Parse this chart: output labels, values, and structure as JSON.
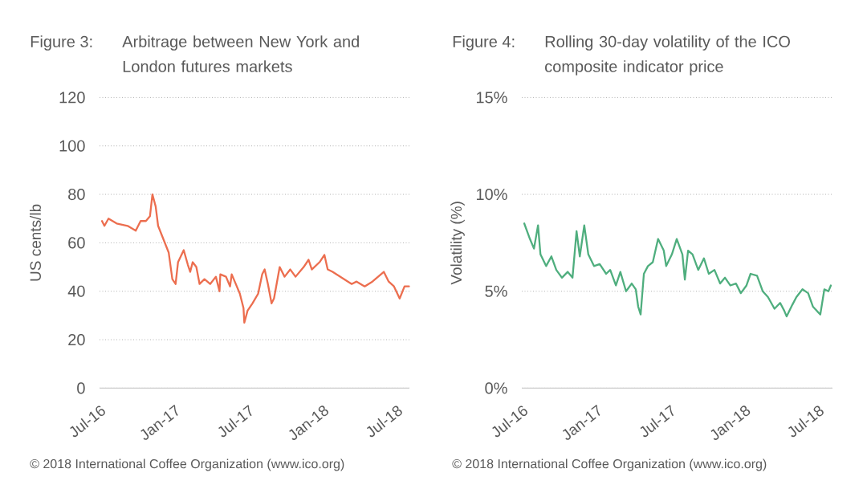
{
  "chart_data": [
    {
      "type": "line",
      "title": "Figure 3:",
      "subtitle": "Arbitrage between New York and London futures markets",
      "ylabel": "US cents/lb",
      "x": [
        "2016-07-07",
        "2016-07-13",
        "2016-07-23",
        "2016-08-12",
        "2016-09-08",
        "2016-09-28",
        "2016-10-10",
        "2016-10-23",
        "2016-11-02",
        "2016-11-08",
        "2016-11-16",
        "2016-11-22",
        "2016-12-18",
        "2016-12-27",
        "2017-01-04",
        "2017-01-10",
        "2017-01-24",
        "2017-02-03",
        "2017-02-09",
        "2017-02-15",
        "2017-02-24",
        "2017-03-04",
        "2017-03-16",
        "2017-03-30",
        "2017-04-13",
        "2017-04-22",
        "2017-04-24",
        "2017-05-08",
        "2017-05-18",
        "2017-05-22",
        "2017-06-01",
        "2017-06-11",
        "2017-06-20",
        "2017-06-22",
        "2017-06-30",
        "2017-07-12",
        "2017-07-26",
        "2017-08-05",
        "2017-08-11",
        "2017-08-19",
        "2017-08-28",
        "2017-09-03",
        "2017-09-17",
        "2017-09-29",
        "2017-10-13",
        "2017-10-26",
        "2017-11-15",
        "2017-11-27",
        "2017-12-05",
        "2017-12-24",
        "2018-01-05",
        "2018-01-13",
        "2018-01-25",
        "2018-03-13",
        "2018-03-25",
        "2018-04-14",
        "2018-05-03",
        "2018-05-31",
        "2018-06-12",
        "2018-06-25",
        "2018-07-09",
        "2018-07-21",
        "2018-08-01"
      ],
      "series": [
        {
          "color": "#ec6e4f",
          "values": [
            69,
            67,
            70,
            68,
            67,
            65,
            69,
            69,
            71,
            80,
            75,
            67,
            56,
            45,
            43,
            52,
            57,
            51,
            48,
            52,
            50,
            43,
            45,
            43,
            46,
            40,
            47,
            46,
            42,
            47,
            43,
            39,
            33,
            27,
            32,
            35,
            39,
            47,
            49,
            43,
            35,
            37,
            50,
            46,
            49,
            46,
            50,
            53,
            49,
            52,
            55,
            49,
            48,
            43,
            44,
            42,
            44,
            48,
            44,
            42,
            37,
            42,
            42
          ]
        }
      ],
      "xlim": [
        "2016-07-01",
        "2018-08-02"
      ],
      "xticks": [
        {
          "value": "2016-07-01",
          "label": "Jul-16"
        },
        {
          "value": "2017-01-01",
          "label": "Jan-17"
        },
        {
          "value": "2017-07-01",
          "label": "Jul-17"
        },
        {
          "value": "2018-01-01",
          "label": "Jan-18"
        },
        {
          "value": "2018-07-01",
          "label": "Jul-18"
        }
      ],
      "ylim": [
        0,
        120
      ],
      "yticks": [
        0,
        20,
        40,
        60,
        80,
        100,
        120
      ],
      "grid": "y",
      "annotations": [
        "© 2018 International Coffee Organization (www.ico.org)"
      ]
    },
    {
      "type": "line",
      "title": "Figure 4:",
      "subtitle": "Rolling 30-day volatility of the ICO composite indicator price",
      "ylabel": "Volatility (%)",
      "x": [
        "2016-07-07",
        "2016-07-21",
        "2016-07-31",
        "2016-08-10",
        "2016-08-16",
        "2016-08-30",
        "2016-09-12",
        "2016-09-24",
        "2016-10-08",
        "2016-10-22",
        "2016-11-03",
        "2016-11-13",
        "2016-11-21",
        "2016-12-02",
        "2016-12-12",
        "2016-12-26",
        "2017-01-09",
        "2017-01-25",
        "2017-02-04",
        "2017-02-18",
        "2017-03-01",
        "2017-03-15",
        "2017-03-29",
        "2017-04-08",
        "2017-04-14",
        "2017-04-20",
        "2017-04-28",
        "2017-05-08",
        "2017-05-20",
        "2017-06-02",
        "2017-06-16",
        "2017-06-22",
        "2017-07-06",
        "2017-07-18",
        "2017-08-01",
        "2017-08-07",
        "2017-08-15",
        "2017-08-26",
        "2017-09-09",
        "2017-09-23",
        "2017-10-05",
        "2017-10-19",
        "2017-11-02",
        "2017-11-14",
        "2017-11-27",
        "2017-12-11",
        "2017-12-23",
        "2018-01-06",
        "2018-01-16",
        "2018-02-01",
        "2018-02-15",
        "2018-02-28",
        "2018-03-16",
        "2018-03-30",
        "2018-04-09",
        "2018-04-15",
        "2018-04-29",
        "2018-05-09",
        "2018-05-24",
        "2018-06-07",
        "2018-06-19",
        "2018-07-07",
        "2018-07-17",
        "2018-07-27",
        "2018-08-02"
      ],
      "series": [
        {
          "color": "#4fae7e",
          "values": [
            8.5,
            7.7,
            7.2,
            8.4,
            6.9,
            6.3,
            6.8,
            6.1,
            5.7,
            6.0,
            5.7,
            8.1,
            6.8,
            8.4,
            6.9,
            6.3,
            6.4,
            5.9,
            6.1,
            5.3,
            6.0,
            5.0,
            5.4,
            5.1,
            4.2,
            3.8,
            5.9,
            6.3,
            6.5,
            7.7,
            7.1,
            6.3,
            6.9,
            7.7,
            6.9,
            5.6,
            7.1,
            6.9,
            6.1,
            6.7,
            5.9,
            6.1,
            5.4,
            5.7,
            5.3,
            5.4,
            4.9,
            5.3,
            5.9,
            5.8,
            5.0,
            4.7,
            4.1,
            4.4,
            4.0,
            3.7,
            4.3,
            4.7,
            5.1,
            4.9,
            4.2,
            3.8,
            5.1,
            5.0,
            5.3
          ]
        }
      ],
      "xlim": [
        "2016-07-01",
        "2018-08-06"
      ],
      "xticks": [
        {
          "value": "2016-07-01",
          "label": "Jul-16"
        },
        {
          "value": "2017-01-01",
          "label": "Jan-17"
        },
        {
          "value": "2017-07-01",
          "label": "Jul-17"
        },
        {
          "value": "2018-01-01",
          "label": "Jan-18"
        },
        {
          "value": "2018-07-01",
          "label": "Jul-18"
        }
      ],
      "ylim": [
        0,
        15
      ],
      "yticks": [
        {
          "value": 0,
          "label": "0%"
        },
        {
          "value": 5,
          "label": "5%"
        },
        {
          "value": 10,
          "label": "10%"
        },
        {
          "value": 15,
          "label": "15%"
        }
      ],
      "grid": "y",
      "annotations": [
        "© 2018 International Coffee Organization (www.ico.org)"
      ]
    }
  ]
}
